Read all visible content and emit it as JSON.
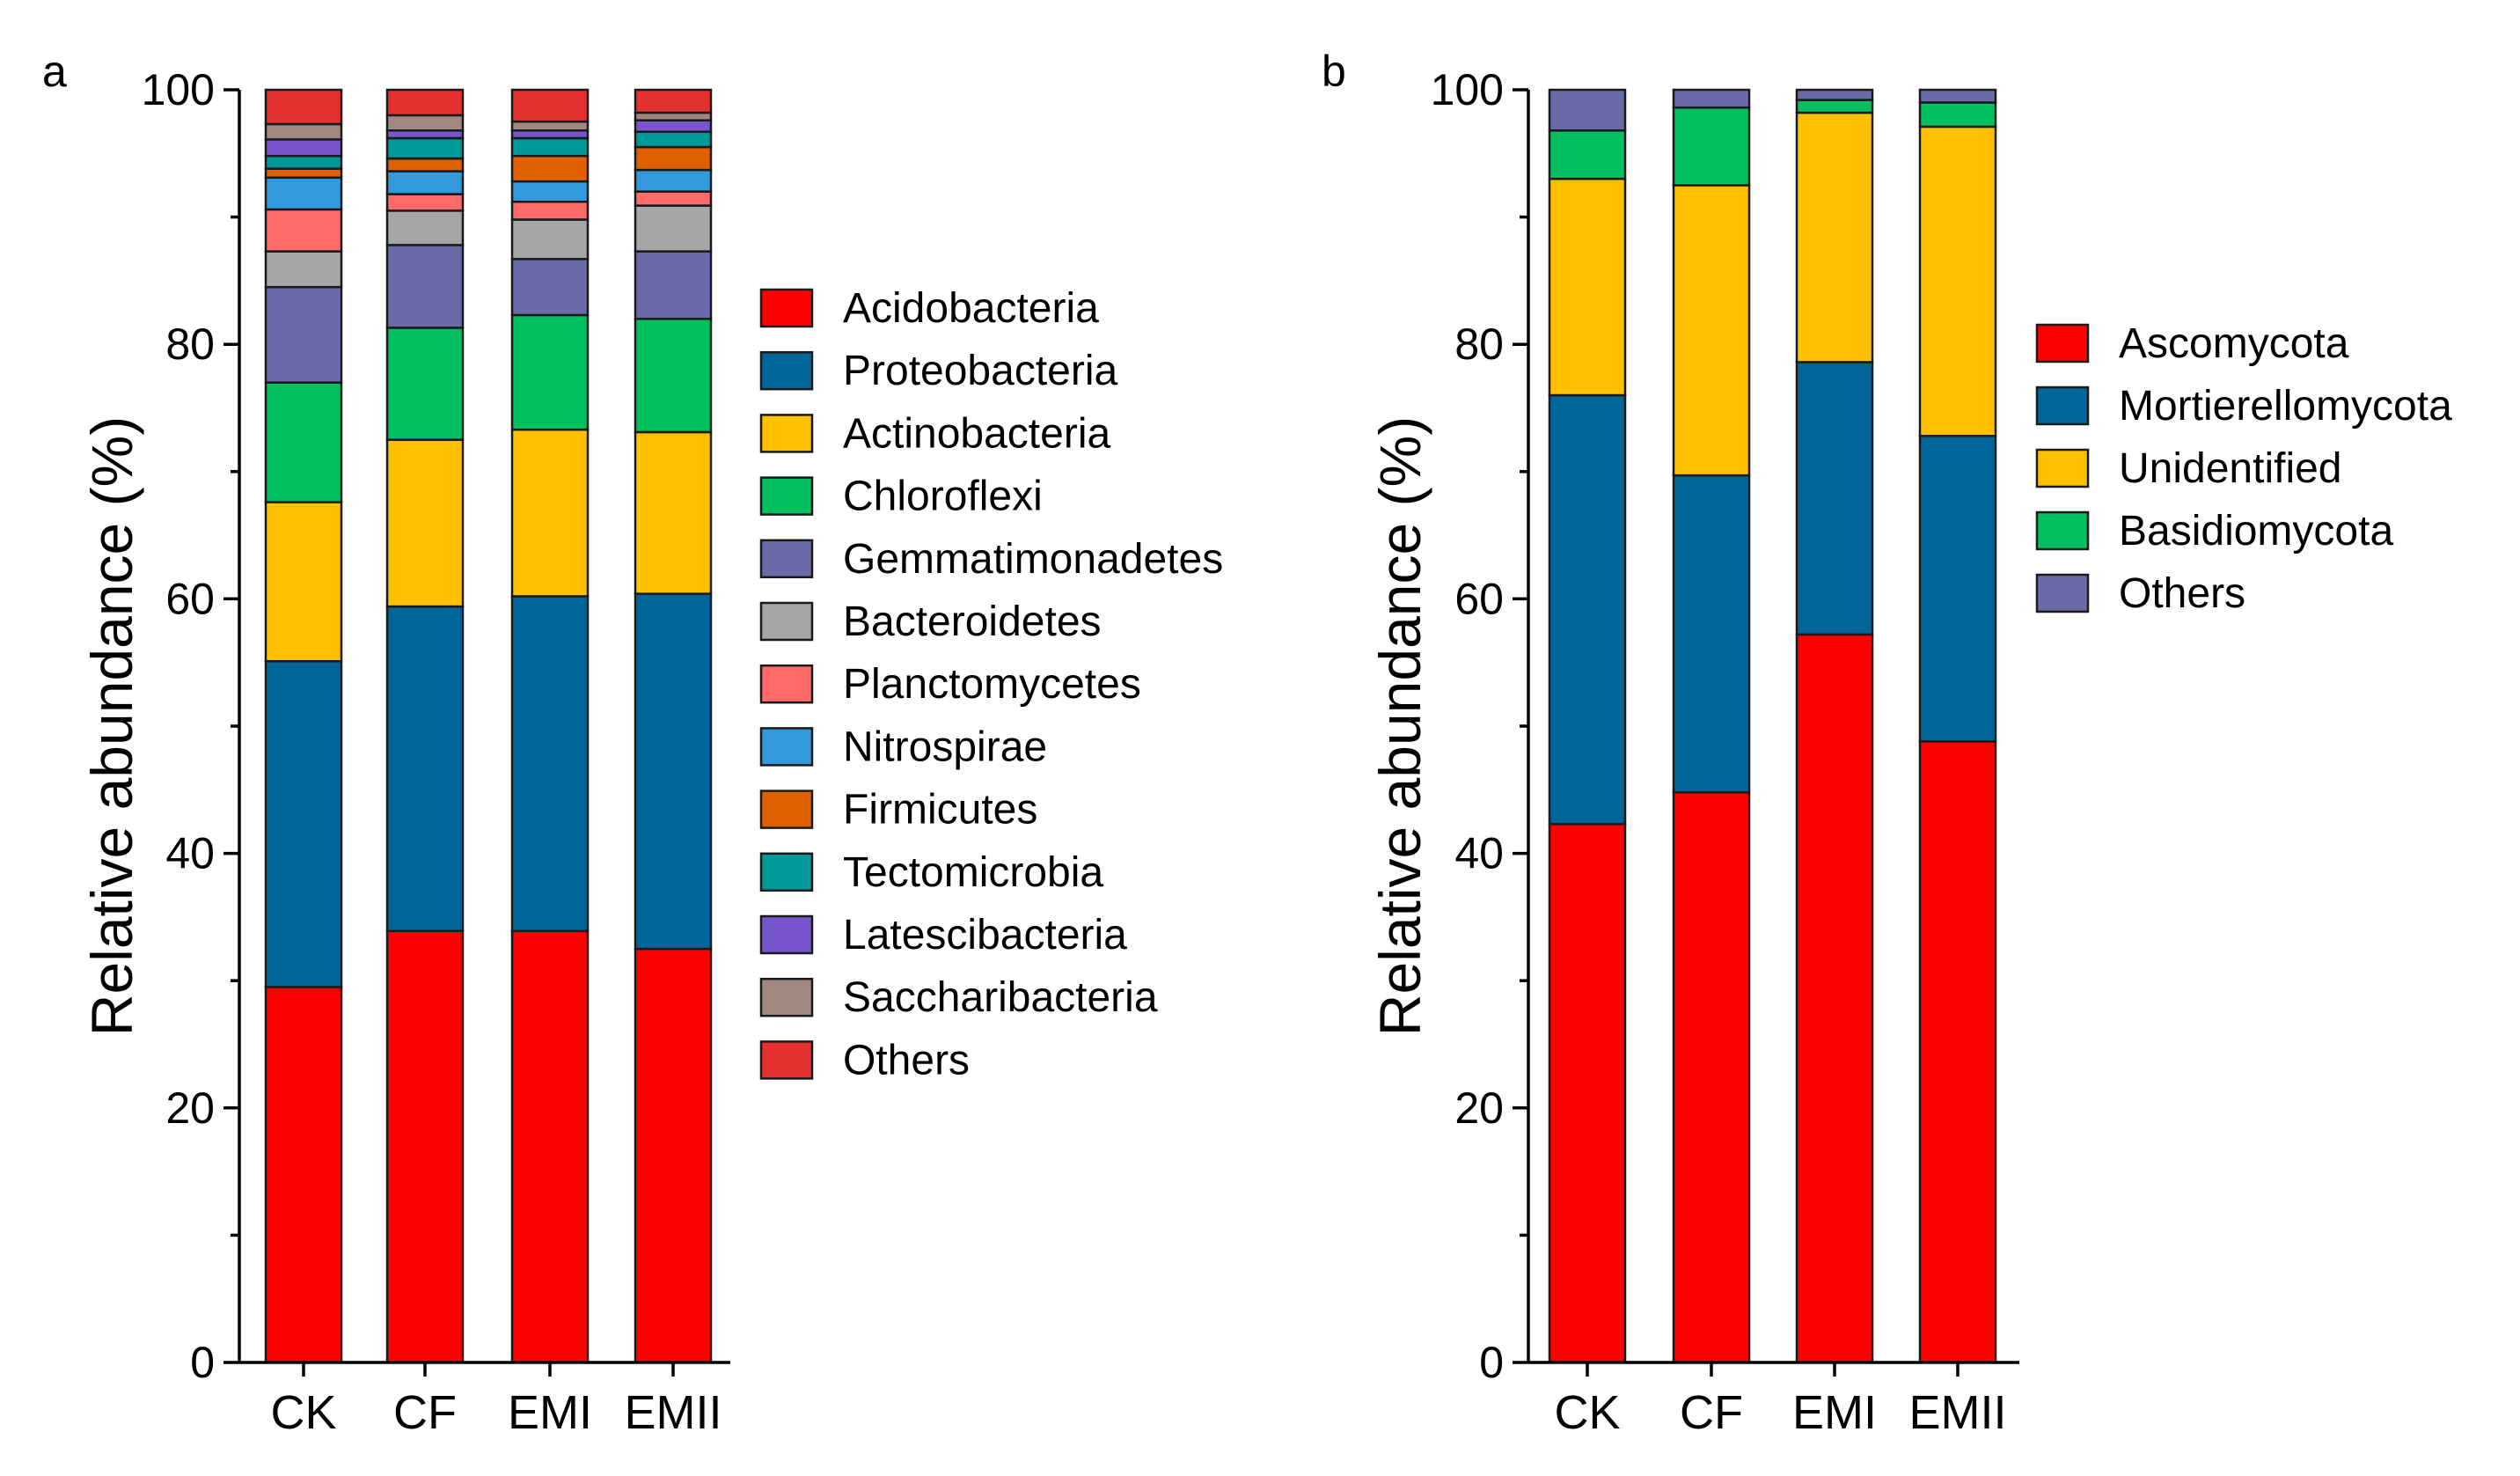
{
  "chart_data": [
    {
      "panel": "a",
      "type": "bar",
      "stacked": true,
      "title": "",
      "xlabel": "",
      "ylabel": "Relative abundance (%)",
      "ylim": [
        0,
        100
      ],
      "yticks": [
        0,
        20,
        40,
        60,
        80,
        100
      ],
      "categories": [
        "CK",
        "CF",
        "EMI",
        "EMII"
      ],
      "legend_position": "right",
      "series": [
        {
          "name": "Acidobacteria",
          "color": "#ff0000",
          "values": [
            29.5,
            33.9,
            33.9,
            32.5
          ]
        },
        {
          "name": "Proteobacteria",
          "color": "#006699",
          "values": [
            25.6,
            25.5,
            26.3,
            27.9
          ]
        },
        {
          "name": "Actinobacteria",
          "color": "#ffc000",
          "values": [
            12.5,
            13.1,
            13.1,
            12.7
          ]
        },
        {
          "name": "Chloroflexi",
          "color": "#00c060",
          "values": [
            9.4,
            8.8,
            9.0,
            8.9
          ]
        },
        {
          "name": "Gemmatimonadetes",
          "color": "#6a6aa8",
          "values": [
            7.5,
            6.5,
            4.4,
            5.3
          ]
        },
        {
          "name": "Bacteroidetes",
          "color": "#a6a6a6",
          "values": [
            2.8,
            2.7,
            3.1,
            3.6
          ]
        },
        {
          "name": "Planctomycetes",
          "color": "#ff6b6b",
          "values": [
            3.3,
            1.3,
            1.4,
            1.1
          ]
        },
        {
          "name": "Nitrospirae",
          "color": "#3399dd",
          "values": [
            2.5,
            1.8,
            1.6,
            1.7
          ]
        },
        {
          "name": "Firmicutes",
          "color": "#e06000",
          "values": [
            0.7,
            1.0,
            2.0,
            1.8
          ]
        },
        {
          "name": "Tectomicrobia",
          "color": "#009999",
          "values": [
            1.0,
            1.6,
            1.4,
            1.2
          ]
        },
        {
          "name": "Latescibacteria",
          "color": "#7755cc",
          "values": [
            1.3,
            0.6,
            0.6,
            0.9
          ]
        },
        {
          "name": "Saccharibacteria",
          "color": "#a08880",
          "values": [
            1.2,
            1.2,
            0.7,
            0.6
          ]
        },
        {
          "name": "Others",
          "color": "#e53030",
          "values": [
            2.7,
            2.0,
            2.5,
            1.8
          ]
        }
      ]
    },
    {
      "panel": "b",
      "type": "bar",
      "stacked": true,
      "title": "",
      "xlabel": "",
      "ylabel": "Relative abundance (%)",
      "ylim": [
        0,
        100
      ],
      "yticks": [
        0,
        20,
        40,
        60,
        80,
        100
      ],
      "categories": [
        "CK",
        "CF",
        "EMI",
        "EMII"
      ],
      "legend_position": "right",
      "series": [
        {
          "name": "Ascomycota",
          "color": "#ff0000",
          "values": [
            42.3,
            44.8,
            57.2,
            48.8
          ]
        },
        {
          "name": "Mortierellomycota",
          "color": "#006699",
          "values": [
            33.7,
            24.9,
            21.4,
            24.0
          ]
        },
        {
          "name": "Unidentified",
          "color": "#ffc000",
          "values": [
            17.0,
            22.8,
            19.6,
            24.3
          ]
        },
        {
          "name": "Basidiomycota",
          "color": "#00c060",
          "values": [
            3.8,
            6.1,
            1.0,
            1.9
          ]
        },
        {
          "name": "Others",
          "color": "#6a6aa8",
          "values": [
            3.2,
            1.4,
            0.8,
            1.0
          ]
        }
      ]
    }
  ]
}
